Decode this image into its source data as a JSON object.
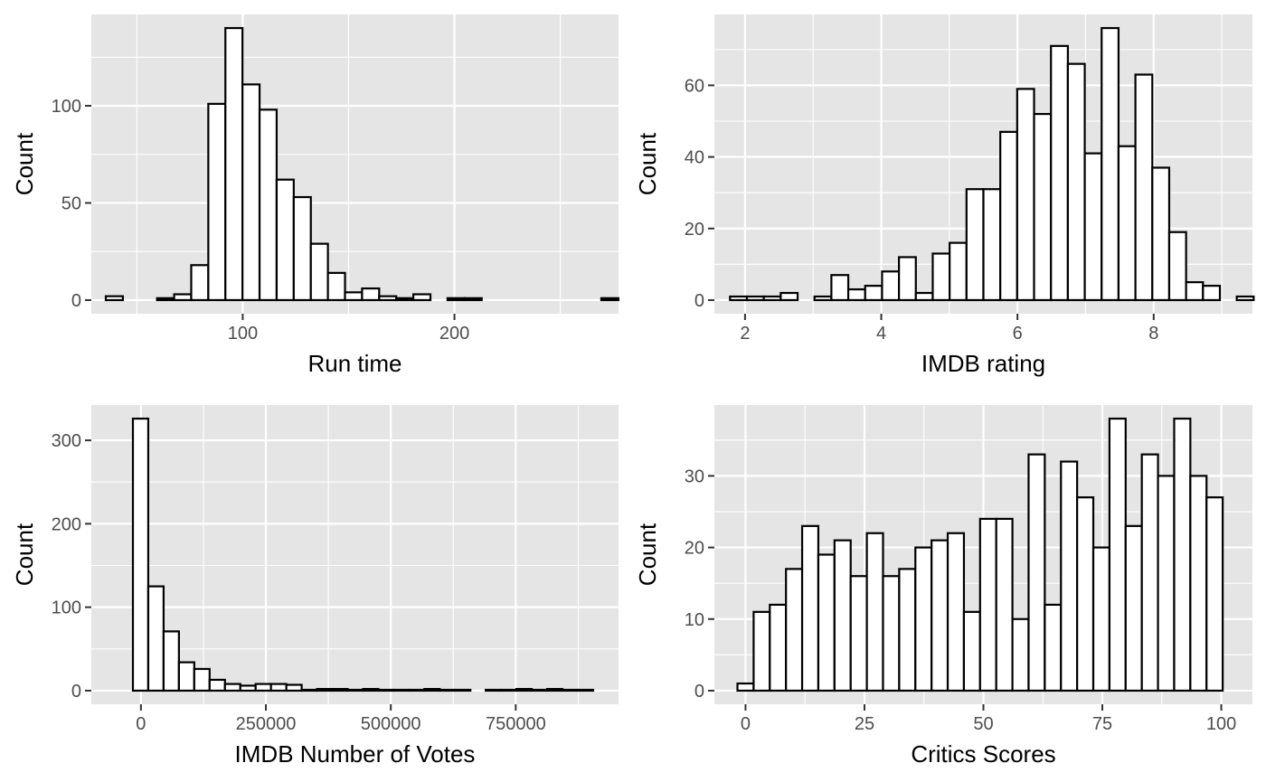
{
  "colors": {
    "panel_background": "#e5e5e5",
    "grid": "#ffffff",
    "bar_fill": "#ffffff",
    "bar_outline": "#000000",
    "tick_label": "#4d4d4d"
  },
  "chart_data": [
    {
      "type": "bar",
      "subtype": "histogram",
      "title": "",
      "xlabel": "Run time",
      "ylabel": "Count",
      "xlim": [
        28.5,
        277.5
      ],
      "ylim": [
        -7,
        147
      ],
      "x_major_ticks": [
        100,
        200
      ],
      "x_tick_labels": [
        "100",
        "200"
      ],
      "x_minor_ticks": [
        50,
        150,
        250
      ],
      "y_major_ticks": [
        0,
        50,
        100
      ],
      "y_tick_labels": [
        "0",
        "50",
        "100"
      ],
      "y_minor_ticks": [
        25,
        75,
        125
      ],
      "bin_start": 35.33,
      "bin_width": 8.07,
      "values": [
        2,
        0,
        0,
        1,
        3,
        18,
        101,
        140,
        111,
        98,
        62,
        53,
        29,
        14,
        4,
        6,
        2,
        1,
        3,
        0,
        1,
        1,
        0,
        0,
        0,
        0,
        0,
        0,
        0,
        1
      ],
      "grid": true
    },
    {
      "type": "bar",
      "subtype": "histogram",
      "title": "",
      "xlabel": "IMDB rating",
      "ylabel": "Count",
      "xlim": [
        1.55,
        9.45
      ],
      "ylim": [
        -3.8,
        79.8
      ],
      "x_major_ticks": [
        2,
        4,
        6,
        8
      ],
      "x_tick_labels": [
        "2",
        "4",
        "6",
        "8"
      ],
      "x_minor_ticks": [
        3,
        5,
        7,
        9
      ],
      "y_major_ticks": [
        0,
        20,
        40,
        60
      ],
      "y_tick_labels": [
        "0",
        "20",
        "40",
        "60"
      ],
      "y_minor_ticks": [
        10,
        30,
        50,
        70
      ],
      "bin_start": 1.78,
      "bin_width": 0.248,
      "values": [
        1,
        1,
        1,
        2,
        0,
        1,
        7,
        3,
        4,
        8,
        12,
        2,
        13,
        16,
        31,
        31,
        47,
        59,
        52,
        71,
        66,
        41,
        76,
        43,
        63,
        37,
        19,
        5,
        4,
        0,
        1
      ],
      "grid": true
    },
    {
      "type": "bar",
      "subtype": "histogram",
      "title": "",
      "xlabel": "IMDB Number of Votes",
      "ylabel": "Count",
      "xlim": [
        -99300,
        955700
      ],
      "ylim": [
        -16.3,
        342.3
      ],
      "x_major_ticks": [
        0,
        250000,
        500000,
        750000
      ],
      "x_tick_labels": [
        "0",
        "250000",
        "500000",
        "750000"
      ],
      "x_minor_ticks": [
        125000,
        375000,
        625000,
        875000
      ],
      "y_major_ticks": [
        0,
        100,
        200,
        300
      ],
      "y_tick_labels": [
        "0",
        "100",
        "200",
        "300"
      ],
      "y_minor_ticks": [
        50,
        150,
        250
      ],
      "bin_start": -16100,
      "bin_width": 30700,
      "values": [
        326,
        125,
        71,
        34,
        26,
        13,
        8,
        6,
        8,
        8,
        7,
        1,
        2,
        2,
        1,
        2,
        1,
        1,
        1,
        2,
        1,
        1,
        0,
        1,
        1,
        2,
        1,
        2,
        1,
        1
      ],
      "grid": true
    },
    {
      "type": "bar",
      "subtype": "histogram",
      "title": "",
      "xlabel": "Critics Scores",
      "ylabel": "Count",
      "xlim": [
        -6.55,
        106.55
      ],
      "ylim": [
        -1.9,
        39.9
      ],
      "x_major_ticks": [
        0,
        25,
        50,
        75,
        100
      ],
      "x_tick_labels": [
        "0",
        "25",
        "50",
        "75",
        "100"
      ],
      "x_minor_ticks": [
        12.5,
        37.5,
        62.5,
        87.5
      ],
      "y_major_ticks": [
        0,
        10,
        20,
        30
      ],
      "y_tick_labels": [
        "0",
        "10",
        "20",
        "30"
      ],
      "y_minor_ticks": [
        5,
        15,
        25,
        35
      ],
      "bin_start": -1.7,
      "bin_width": 3.4,
      "values": [
        1,
        11,
        12,
        17,
        23,
        19,
        21,
        16,
        22,
        16,
        17,
        20,
        21,
        22,
        11,
        24,
        24,
        10,
        33,
        12,
        32,
        27,
        20,
        38,
        23,
        33,
        30,
        38,
        30,
        27
      ],
      "grid": true
    }
  ]
}
